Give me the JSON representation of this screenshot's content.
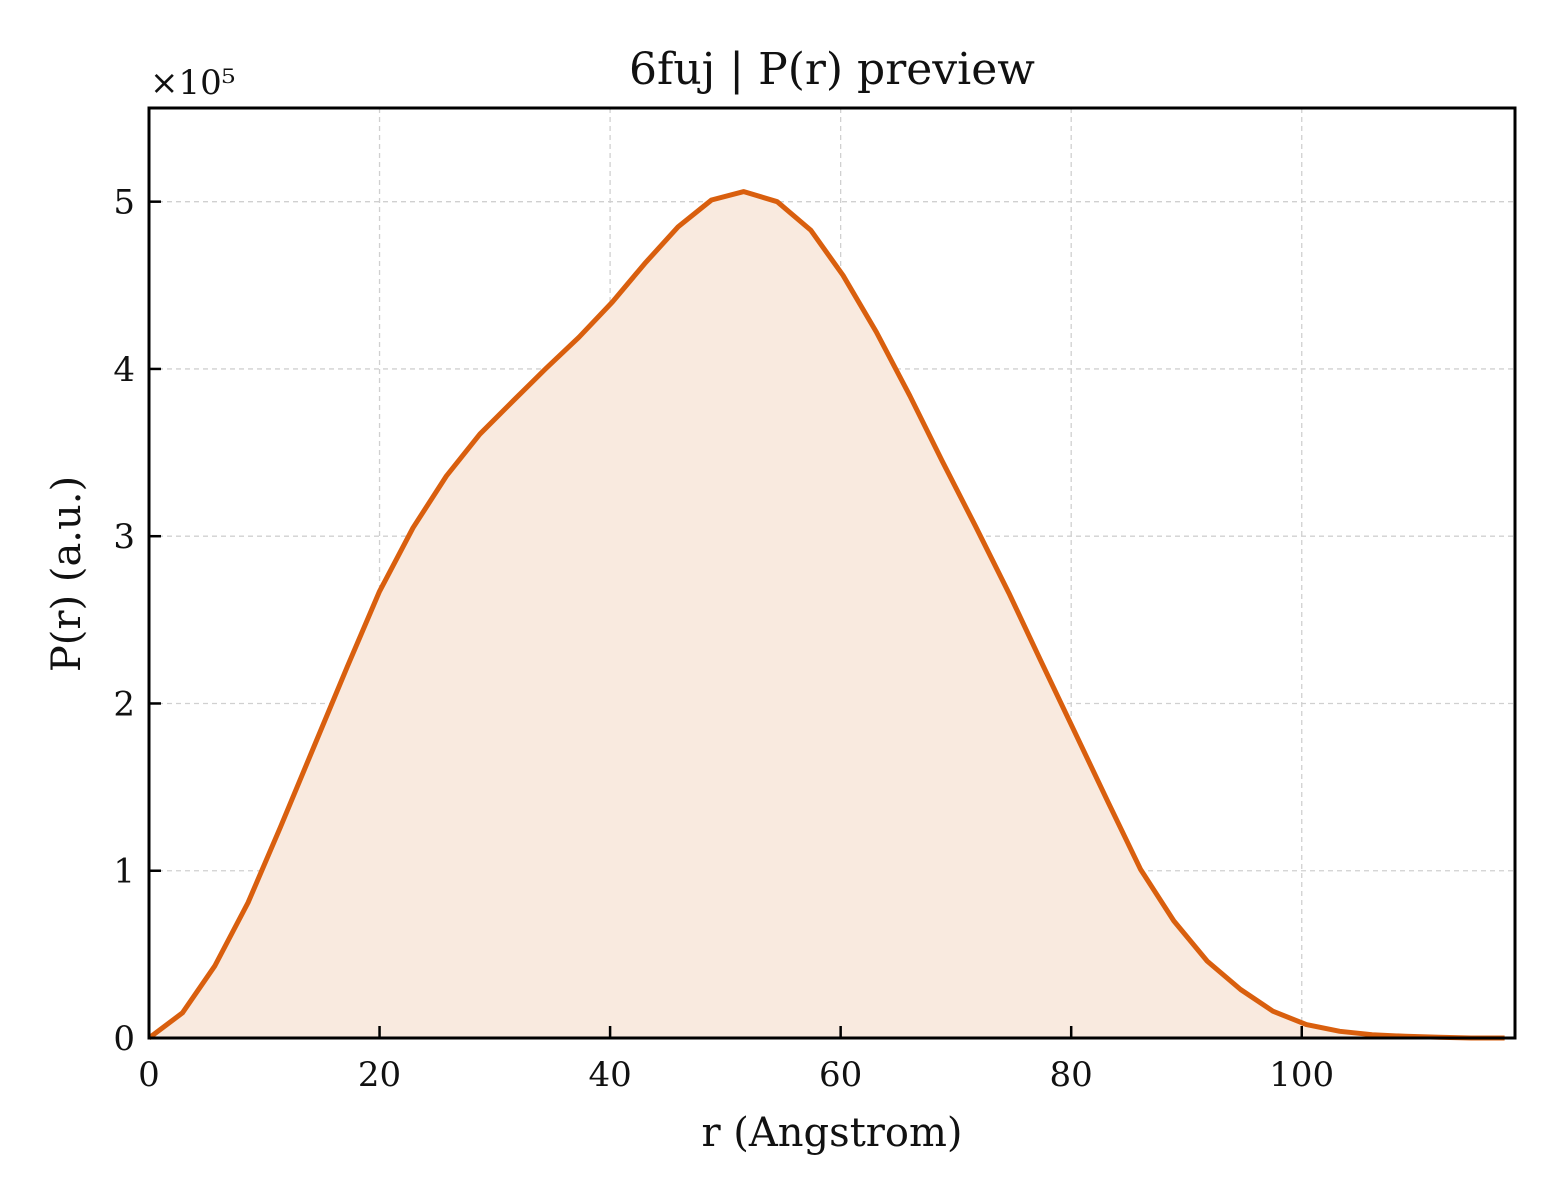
{
  "chart_data": {
    "type": "area",
    "title": "6fuj | P(r) preview",
    "xlabel": "r (Angstrom)",
    "ylabel": "P(r) (a.u.)",
    "y_multiplier_label": "×10⁵",
    "y_scale_factor": 100000,
    "xlim": [
      0,
      118.5
    ],
    "ylim": [
      0,
      5.56
    ],
    "x_ticks": [
      0,
      20,
      40,
      60,
      80,
      100
    ],
    "y_ticks": [
      0,
      1,
      2,
      3,
      4,
      5
    ],
    "grid": true,
    "line_color": "#d95f0e",
    "fill_color": "#f9eadf",
    "series": [
      {
        "x": [
          0,
          2.9,
          5.7,
          8.6,
          11.4,
          14.3,
          17.2,
          20.0,
          22.9,
          25.8,
          28.7,
          31.6,
          34.4,
          37.3,
          40.2,
          43.0,
          45.9,
          48.8,
          51.6,
          54.5,
          57.4,
          60.2,
          63.1,
          66.0,
          68.8,
          71.7,
          74.6,
          77.4,
          80.3,
          83.2,
          86.0,
          88.9,
          91.8,
          94.7,
          97.5,
          100.4,
          103.3,
          106.1,
          109.0,
          111.9,
          114.7,
          117.6
        ],
        "y": [
          0.0,
          0.15,
          0.43,
          0.81,
          1.26,
          1.74,
          2.22,
          2.67,
          3.05,
          3.36,
          3.61,
          3.81,
          4.0,
          4.19,
          4.4,
          4.63,
          4.85,
          5.01,
          5.06,
          5.0,
          4.83,
          4.56,
          4.22,
          3.84,
          3.45,
          3.06,
          2.66,
          2.25,
          1.83,
          1.41,
          1.01,
          0.7,
          0.46,
          0.29,
          0.16,
          0.08,
          0.04,
          0.02,
          0.01,
          0.005,
          0.0,
          0.0
        ]
      }
    ]
  }
}
